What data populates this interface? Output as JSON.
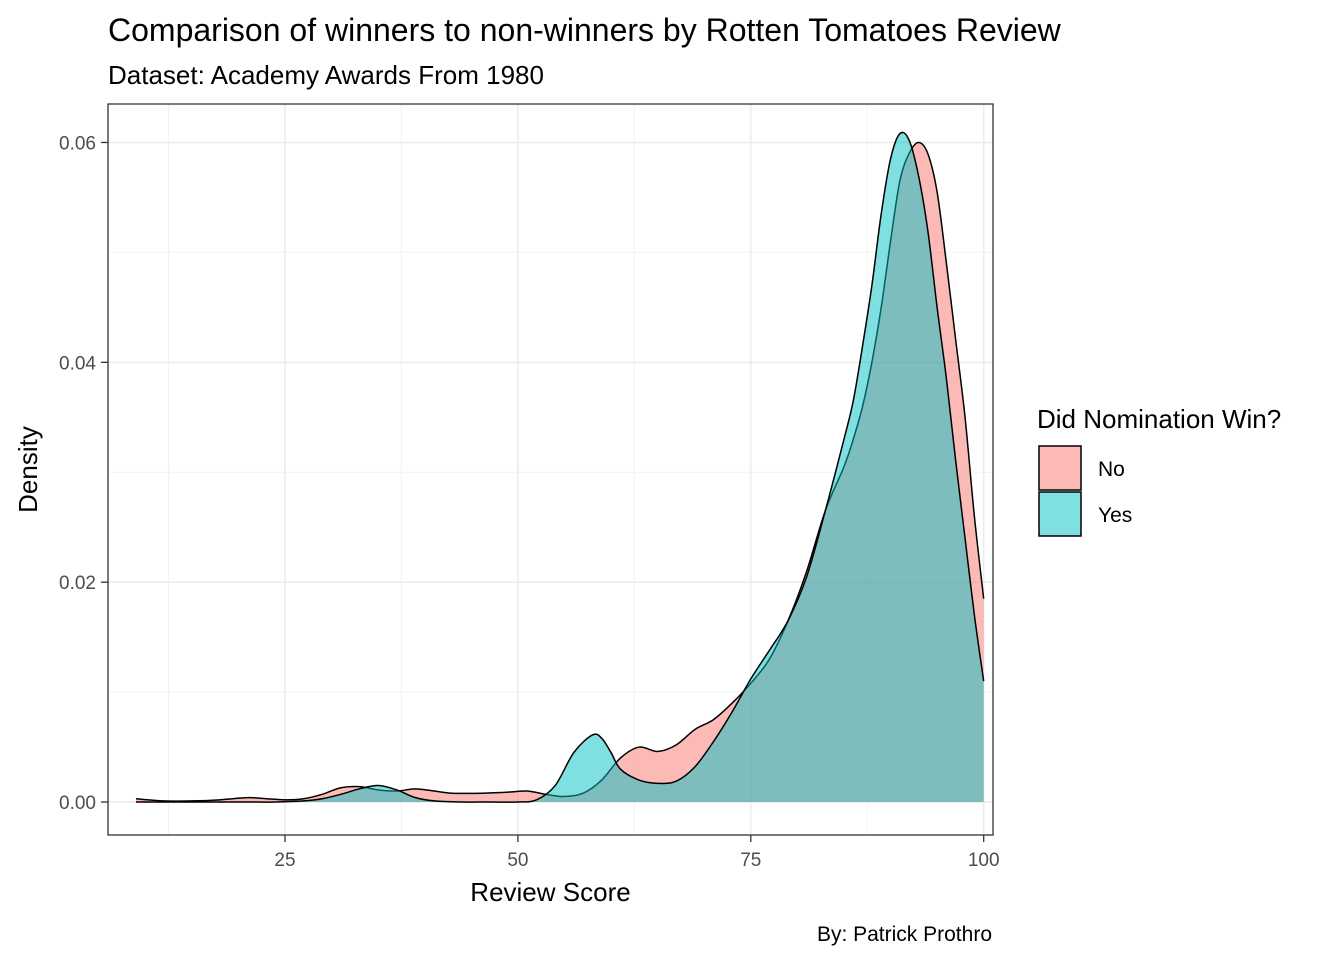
{
  "chart_data": {
    "type": "area",
    "title": "Comparison of winners to non-winners by Rotten Tomatoes Review",
    "subtitle": "Dataset: Academy Awards From 1980",
    "xlabel": "Review Score",
    "ylabel": "Density",
    "caption": "By: Patrick Prothro",
    "xlim": [
      6,
      101
    ],
    "ylim": [
      -0.003,
      0.0635
    ],
    "x_ticks": [
      25,
      50,
      75,
      100
    ],
    "x_tick_labels": [
      "25",
      "50",
      "75",
      "100"
    ],
    "y_ticks": [
      0.0,
      0.02,
      0.04,
      0.06
    ],
    "y_tick_labels": [
      "0.00",
      "0.02",
      "0.04",
      "0.06"
    ],
    "grid": true,
    "legend": {
      "title": "Did Nomination Win?",
      "position": "right"
    },
    "series": [
      {
        "name": "No",
        "color": "#F8766D",
        "points": [
          [
            9,
            0.0003
          ],
          [
            12,
            0.0001
          ],
          [
            15,
            0.0001
          ],
          [
            18,
            0.0002
          ],
          [
            21,
            0.0004
          ],
          [
            23,
            0.0003
          ],
          [
            25,
            0.0002
          ],
          [
            27,
            0.0003
          ],
          [
            29,
            0.0007
          ],
          [
            31,
            0.0013
          ],
          [
            33,
            0.0014
          ],
          [
            35,
            0.0011
          ],
          [
            37,
            0.001
          ],
          [
            39,
            0.0012
          ],
          [
            41,
            0.001
          ],
          [
            43,
            0.0008
          ],
          [
            46,
            0.0008
          ],
          [
            49,
            0.0009
          ],
          [
            51,
            0.001
          ],
          [
            53,
            0.0007
          ],
          [
            55,
            0.0005
          ],
          [
            57,
            0.0008
          ],
          [
            59,
            0.002
          ],
          [
            61,
            0.004
          ],
          [
            63,
            0.005
          ],
          [
            65,
            0.0046
          ],
          [
            67,
            0.0052
          ],
          [
            69,
            0.0066
          ],
          [
            71,
            0.0075
          ],
          [
            73,
            0.009
          ],
          [
            75,
            0.0108
          ],
          [
            77,
            0.013
          ],
          [
            79,
            0.0165
          ],
          [
            81,
            0.021
          ],
          [
            83,
            0.0265
          ],
          [
            85,
            0.0305
          ],
          [
            86,
            0.033
          ],
          [
            87,
            0.036
          ],
          [
            88,
            0.04
          ],
          [
            89,
            0.045
          ],
          [
            90,
            0.051
          ],
          [
            91,
            0.0565
          ],
          [
            92,
            0.059
          ],
          [
            93,
            0.06
          ],
          [
            94,
            0.059
          ],
          [
            95,
            0.0555
          ],
          [
            96,
            0.049
          ],
          [
            97,
            0.042
          ],
          [
            98,
            0.035
          ],
          [
            99,
            0.026
          ],
          [
            100,
            0.0185
          ]
        ]
      },
      {
        "name": "Yes",
        "color": "#00BFC4",
        "points": [
          [
            9,
            0.0
          ],
          [
            12,
            0.0
          ],
          [
            15,
            0.0
          ],
          [
            18,
            0.0
          ],
          [
            21,
            0.0
          ],
          [
            24,
            0.0
          ],
          [
            27,
            0.0001
          ],
          [
            29,
            0.0003
          ],
          [
            31,
            0.0007
          ],
          [
            33,
            0.0012
          ],
          [
            35,
            0.0015
          ],
          [
            37,
            0.0011
          ],
          [
            39,
            0.0004
          ],
          [
            41,
            0.0001
          ],
          [
            44,
            0.0
          ],
          [
            47,
            0.0
          ],
          [
            50,
            0.0
          ],
          [
            52,
            0.0002
          ],
          [
            54,
            0.0015
          ],
          [
            56,
            0.0045
          ],
          [
            58,
            0.0061
          ],
          [
            59,
            0.0058
          ],
          [
            60,
            0.0045
          ],
          [
            61,
            0.003
          ],
          [
            63,
            0.002
          ],
          [
            65,
            0.0017
          ],
          [
            67,
            0.0019
          ],
          [
            69,
            0.0032
          ],
          [
            71,
            0.0055
          ],
          [
            73,
            0.0082
          ],
          [
            75,
            0.0112
          ],
          [
            77,
            0.0138
          ],
          [
            79,
            0.0165
          ],
          [
            81,
            0.0205
          ],
          [
            83,
            0.0265
          ],
          [
            85,
            0.033
          ],
          [
            86,
            0.0365
          ],
          [
            87,
            0.0415
          ],
          [
            88,
            0.047
          ],
          [
            89,
            0.0535
          ],
          [
            90,
            0.0585
          ],
          [
            91,
            0.0608
          ],
          [
            92,
            0.0602
          ],
          [
            93,
            0.057
          ],
          [
            94,
            0.052
          ],
          [
            95,
            0.045
          ],
          [
            96,
            0.0385
          ],
          [
            97,
            0.031
          ],
          [
            98,
            0.024
          ],
          [
            99,
            0.017
          ],
          [
            100,
            0.011
          ]
        ]
      }
    ]
  }
}
